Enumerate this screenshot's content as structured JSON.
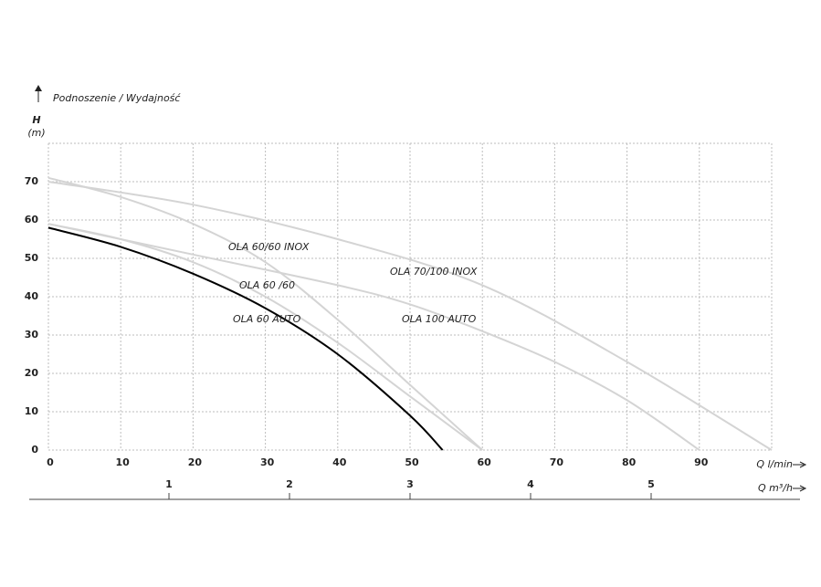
{
  "chart_data": {
    "type": "line",
    "title": "Podnoszenie / Wydajność",
    "y_label": "H",
    "y_unit": "(m)",
    "x_label": "Q l/min",
    "x2_label": "Q m³/h",
    "xlim": [
      0,
      100
    ],
    "xticks": [
      0,
      10,
      20,
      30,
      40,
      50,
      60,
      70,
      80,
      90
    ],
    "ylim": [
      0,
      80
    ],
    "yticks": [
      0,
      10,
      20,
      30,
      40,
      50,
      60,
      70
    ],
    "x2lim": [
      0,
      6
    ],
    "x2ticks": [
      1,
      2,
      3,
      4,
      5
    ],
    "grid": true,
    "series": [
      {
        "name": "OLA 60/60 INOX",
        "color": "#d4d4d4",
        "x": [
          0,
          10,
          20,
          30,
          40,
          50,
          60
        ],
        "values": [
          71,
          66,
          59,
          49,
          34,
          17,
          0
        ]
      },
      {
        "name": "OLA 70/100 INOX",
        "color": "#d4d4d4",
        "x": [
          0,
          20,
          40,
          60,
          80,
          100
        ],
        "values": [
          70,
          64,
          55,
          43,
          23,
          0
        ]
      },
      {
        "name": "OLA 60 /60",
        "color": "#d4d4d4",
        "x": [
          0,
          10,
          20,
          30,
          40,
          50,
          60
        ],
        "values": [
          59,
          55,
          49,
          40,
          28,
          14,
          0
        ]
      },
      {
        "name": "OLA 100 AUTO",
        "color": "#d4d4d4",
        "x": [
          0,
          20,
          40,
          50,
          60,
          70,
          80,
          90
        ],
        "values": [
          59,
          51,
          43,
          38,
          31,
          23,
          13,
          0
        ]
      },
      {
        "name": "OLA 60 AUTO",
        "color": "#000000",
        "x": [
          0,
          10,
          20,
          30,
          40,
          50,
          54.5
        ],
        "values": [
          58,
          53,
          46,
          37,
          25,
          9,
          0
        ]
      }
    ]
  }
}
